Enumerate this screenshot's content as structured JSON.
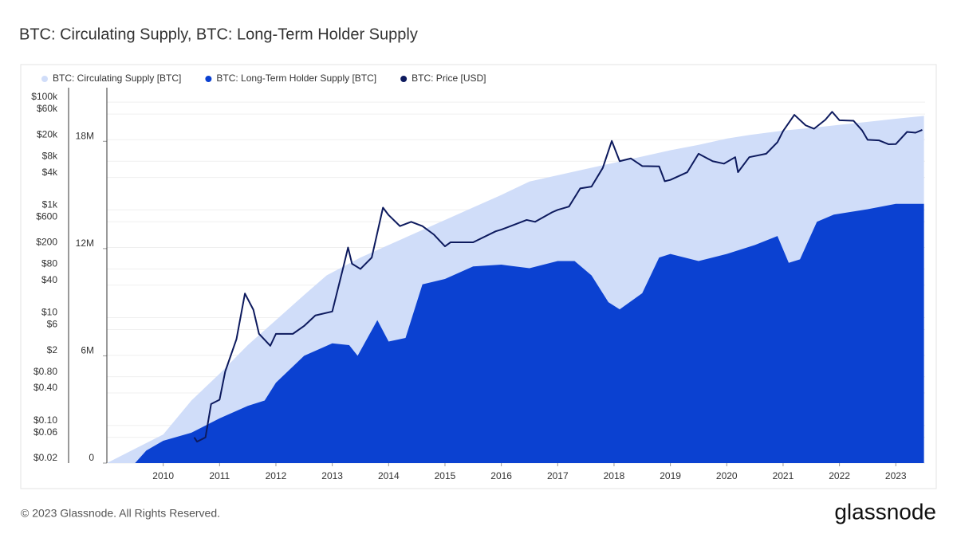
{
  "chart_data": {
    "type": "combo",
    "title": "BTC: Circulating Supply, BTC: Long-Term Holder Supply",
    "footer": "© 2023 Glassnode. All Rights Reserved.",
    "brand": "glassnode",
    "xlim": [
      2009.0,
      2023.52
    ],
    "xticks": [
      2010,
      2011,
      2012,
      2013,
      2014,
      2015,
      2016,
      2017,
      2018,
      2019,
      2020,
      2021,
      2022,
      2023
    ],
    "ylim": [
      0.02,
      185000
    ],
    "log_y": true,
    "yticks": [
      {
        "value": 0.02,
        "label": "$0.02"
      },
      {
        "value": 0.06,
        "label": "$0.06"
      },
      {
        "value": 0.1,
        "label": "$0.10"
      },
      {
        "value": 0.4,
        "label": "$0.40"
      },
      {
        "value": 0.8,
        "label": "$0.80"
      },
      {
        "value": 2,
        "label": "$2"
      },
      {
        "value": 6,
        "label": "$6"
      },
      {
        "value": 10,
        "label": "$10"
      },
      {
        "value": 40,
        "label": "$40"
      },
      {
        "value": 80,
        "label": "$80"
      },
      {
        "value": 200,
        "label": "$200"
      },
      {
        "value": 600,
        "label": "$600"
      },
      {
        "value": 1000,
        "label": "$1k"
      },
      {
        "value": 4000,
        "label": "$4k"
      },
      {
        "value": 8000,
        "label": "$8k"
      },
      {
        "value": 20000,
        "label": "$20k"
      },
      {
        "value": 60000,
        "label": "$60k"
      },
      {
        "value": 100000,
        "label": "$100k"
      }
    ],
    "y2lim": [
      0,
      21000000
    ],
    "y2ticks": [
      0,
      {
        "value": 6000000,
        "label": "6M"
      },
      {
        "value": 12000000,
        "label": "12M"
      },
      {
        "value": 18000000,
        "label": "18M"
      }
    ],
    "grid": true,
    "series": [
      {
        "name": "BTC: Circulating Supply [BTC]",
        "color": "#d0ddf9",
        "type": "area",
        "axis": "y2",
        "x": [
          2009.0,
          2009.5,
          2010.0,
          2010.5,
          2011.0,
          2011.5,
          2012.0,
          2012.5,
          2012.9,
          2013.5,
          2014.0,
          2014.5,
          2015.0,
          2015.5,
          2016.0,
          2016.5,
          2017.0,
          2017.5,
          2018.0,
          2018.5,
          2019.0,
          2019.5,
          2020.0,
          2020.4,
          2021.0,
          2021.5,
          2022.0,
          2022.5,
          2023.0,
          2023.5
        ],
        "values": [
          0,
          800000,
          1600000,
          3500000,
          5000000,
          6600000,
          8000000,
          9400000,
          10500000,
          11500000,
          12200000,
          12900000,
          13600000,
          14300000,
          15000000,
          15750000,
          16100000,
          16450000,
          16800000,
          17150000,
          17500000,
          17800000,
          18150000,
          18350000,
          18600000,
          18750000,
          18920000,
          19090000,
          19260000,
          19420000
        ]
      },
      {
        "name": "BTC: Long-Term Holder Supply [BTC]",
        "color": "#0b41d1",
        "type": "area",
        "axis": "y2",
        "x": [
          2009.5,
          2009.7,
          2010.0,
          2010.5,
          2011.0,
          2011.5,
          2011.8,
          2012.0,
          2012.5,
          2013.0,
          2013.3,
          2013.45,
          2013.8,
          2014.0,
          2014.3,
          2014.6,
          2015.0,
          2015.5,
          2016.0,
          2016.5,
          2017.0,
          2017.3,
          2017.6,
          2017.9,
          2018.1,
          2018.5,
          2018.8,
          2019.0,
          2019.5,
          2020.0,
          2020.5,
          2020.9,
          2021.1,
          2021.3,
          2021.6,
          2021.9,
          2022.5,
          2023.0,
          2023.5
        ],
        "values": [
          0,
          700000,
          1250000,
          1700000,
          2500000,
          3200000,
          3500000,
          4500000,
          6000000,
          6700000,
          6600000,
          6000000,
          8000000,
          6800000,
          7000000,
          10000000,
          10300000,
          11000000,
          11100000,
          10900000,
          11300000,
          11300000,
          10500000,
          9000000,
          8600000,
          9500000,
          11500000,
          11700000,
          11300000,
          11700000,
          12200000,
          12700000,
          11200000,
          11400000,
          13500000,
          13900000,
          14200000,
          14500000,
          14500000
        ]
      },
      {
        "name": "BTC: Price [USD]",
        "color": "#0d1a5e",
        "type": "line",
        "axis": "y",
        "x": [
          2010.55,
          2010.6,
          2010.75,
          2010.85,
          2011.0,
          2011.1,
          2011.3,
          2011.45,
          2011.6,
          2011.7,
          2011.9,
          2012.0,
          2012.3,
          2012.5,
          2012.7,
          2013.0,
          2013.2,
          2013.28,
          2013.35,
          2013.5,
          2013.7,
          2013.9,
          2014.0,
          2014.2,
          2014.4,
          2014.6,
          2014.8,
          2015.0,
          2015.1,
          2015.5,
          2015.9,
          2016.0,
          2016.45,
          2016.6,
          2016.9,
          2017.0,
          2017.2,
          2017.4,
          2017.6,
          2017.8,
          2017.96,
          2018.1,
          2018.3,
          2018.5,
          2018.8,
          2018.9,
          2019.0,
          2019.3,
          2019.5,
          2019.75,
          2019.95,
          2020.15,
          2020.2,
          2020.4,
          2020.7,
          2020.9,
          2021.0,
          2021.2,
          2021.4,
          2021.55,
          2021.75,
          2021.87,
          2022.0,
          2022.25,
          2022.4,
          2022.5,
          2022.7,
          2022.87,
          2023.0,
          2023.2,
          2023.35,
          2023.47
        ],
        "values": [
          0.06,
          0.05,
          0.06,
          0.25,
          0.3,
          1,
          4,
          28,
          14,
          5,
          3,
          5,
          5,
          7,
          11,
          13,
          90,
          200,
          100,
          80,
          130,
          1100,
          800,
          500,
          600,
          500,
          350,
          210,
          250,
          250,
          400,
          430,
          650,
          600,
          900,
          1000,
          1150,
          2500,
          2700,
          6000,
          19000,
          8000,
          9000,
          6500,
          6400,
          3400,
          3600,
          5000,
          11000,
          8000,
          7200,
          9500,
          5000,
          9500,
          11000,
          18000,
          29000,
          58000,
          37000,
          32000,
          47000,
          66000,
          46000,
          45000,
          30000,
          20000,
          19500,
          16500,
          16600,
          28000,
          27000,
          30500
        ]
      }
    ]
  }
}
